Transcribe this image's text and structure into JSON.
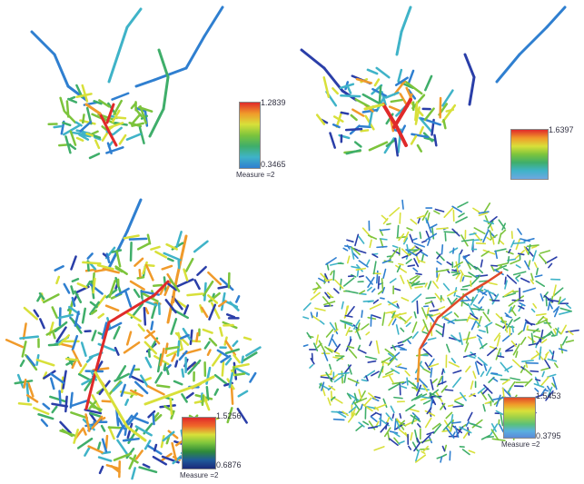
{
  "colors": {
    "scale": [
      "#2a3ea8",
      "#2f7fd0",
      "#3fb3c8",
      "#3fae6a",
      "#7cc43c",
      "#d8e03a",
      "#f09a2a",
      "#e02a2a"
    ]
  },
  "panels": [
    {
      "id": "top-left",
      "legend": {
        "max_label": "1.2839",
        "min_label": "0.3465",
        "measure_label": "Measure =2"
      }
    },
    {
      "id": "top-right",
      "legend": {
        "max_label": "1.6397",
        "min_label": "",
        "measure_label": ""
      }
    },
    {
      "id": "bottom-left",
      "legend": {
        "max_label": "1.5256",
        "min_label": "0.6876",
        "measure_label": "Measure =2"
      }
    },
    {
      "id": "bottom-right",
      "legend": {
        "max_label": "1.5453",
        "min_label": "0.3795",
        "measure_label": "Measure =2"
      }
    }
  ]
}
